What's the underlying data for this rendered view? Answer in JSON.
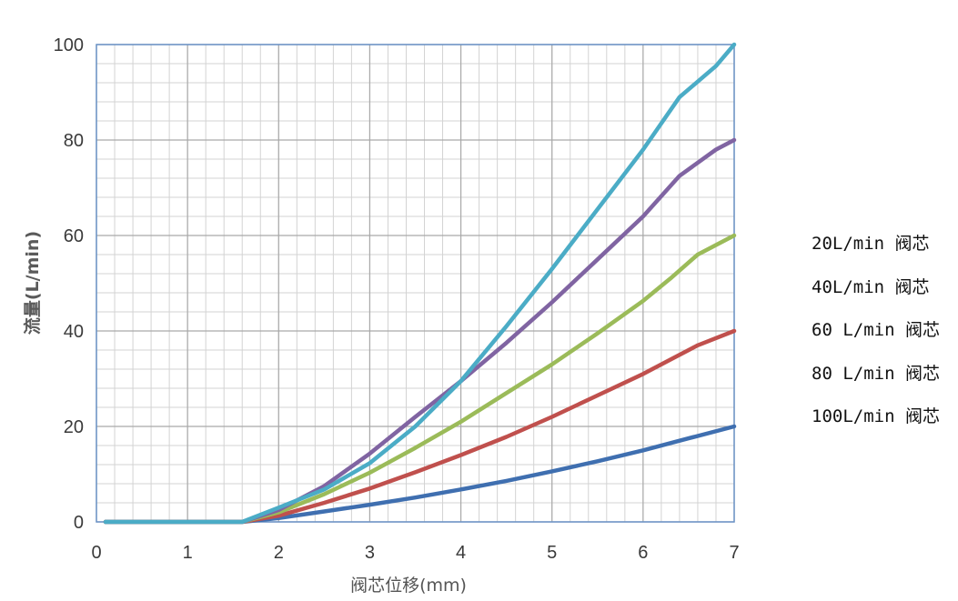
{
  "chart_data": {
    "type": "line",
    "title": "",
    "xlabel": "阀芯位移(mm)",
    "ylabel": "流量(L/min)",
    "xlim": [
      0,
      7
    ],
    "ylim": [
      0,
      100
    ],
    "x_ticks": [
      "0",
      "1",
      "2",
      "3",
      "4",
      "5",
      "6",
      "7"
    ],
    "y_ticks": [
      "0",
      "20",
      "40",
      "60",
      "80",
      "100"
    ],
    "grid": true,
    "legend_placement": "right",
    "legend": [
      "20L/min 阀芯",
      "40L/min 阀芯",
      "60 L/min 阀芯",
      "80 L/min 阀芯",
      "100L/min 阀芯"
    ],
    "series": [
      {
        "name": "20L/min 阀芯",
        "color": "#3f6fb0",
        "x": [
          0.1,
          0.5,
          1,
          1.5,
          1.6,
          2,
          2.5,
          3,
          3.5,
          4,
          4.5,
          5,
          5.5,
          6,
          6.5,
          7
        ],
        "y": [
          0,
          0,
          0,
          0,
          0,
          0.8,
          2.2,
          3.6,
          5.1,
          6.8,
          8.6,
          10.6,
          12.7,
          15,
          17.5,
          20
        ]
      },
      {
        "name": "40L/min 阀芯",
        "color": "#c0504d",
        "x": [
          0.1,
          0.5,
          1,
          1.5,
          1.6,
          2,
          2.5,
          3,
          3.5,
          4,
          4.5,
          5,
          5.5,
          6,
          6.3,
          6.6,
          7
        ],
        "y": [
          0,
          0,
          0,
          0,
          0,
          1.3,
          4,
          7,
          10.4,
          14,
          17.8,
          22,
          26.5,
          31,
          34,
          37,
          40
        ]
      },
      {
        "name": "60 L/min 阀芯",
        "color": "#9bbb59",
        "x": [
          0.1,
          0.5,
          1,
          1.5,
          1.6,
          2,
          2.5,
          3,
          3.5,
          4,
          4.5,
          5,
          5.5,
          6,
          6.3,
          6.6,
          7
        ],
        "y": [
          0,
          0,
          0,
          0,
          0,
          2,
          5.8,
          10.3,
          15.5,
          21,
          27,
          33,
          39.5,
          46.3,
          51,
          56,
          60
        ]
      },
      {
        "name": "80 L/min 阀芯",
        "color": "#8064a2",
        "x": [
          0.1,
          0.5,
          1,
          1.5,
          1.6,
          2,
          2.5,
          3,
          3.5,
          4,
          4.5,
          5,
          5.5,
          6,
          6.4,
          6.8,
          7
        ],
        "y": [
          0,
          0,
          0,
          0,
          0,
          2.5,
          7.5,
          14.3,
          22,
          29.5,
          37.5,
          46,
          55,
          64,
          72.5,
          78,
          80
        ]
      },
      {
        "name": "100L/min 阀芯",
        "color": "#4bacc6",
        "x": [
          0.1,
          0.5,
          1,
          1.5,
          1.6,
          2,
          2.5,
          3,
          3.5,
          4,
          4.5,
          5,
          5.5,
          6,
          6.4,
          6.8,
          7
        ],
        "y": [
          0,
          0,
          0,
          0,
          0,
          3,
          6.8,
          12.3,
          20,
          29.5,
          41,
          53,
          65.5,
          78,
          89,
          95.5,
          100
        ]
      }
    ]
  }
}
